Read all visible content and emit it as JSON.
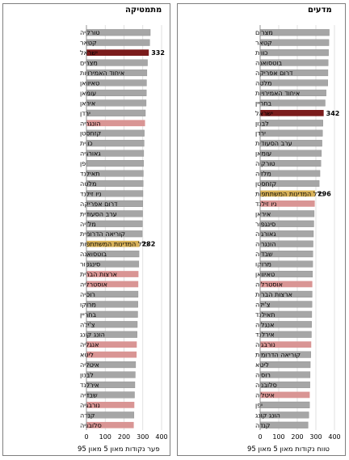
{
  "chart_data": [
    {
      "type": "bar",
      "orientation": "horizontal",
      "title": "מתמטיקה",
      "xlabel": "פער נקודות מאון 5 מאון 95",
      "xlim": [
        0,
        400
      ],
      "xticks": [
        0,
        100,
        200,
        300,
        400
      ],
      "highlight_colors": {
        "default": "#a6a6a6",
        "israel": "#7b1c1c",
        "average": "#d9b35a",
        "pink": "#d99594"
      },
      "categories": [
        "טורקיה",
        "קטאר",
        "ישראל",
        "מצרים",
        "איחוד האמירויות",
        "טאיוואן",
        "עומאן",
        "איראן",
        "ירדן",
        "הונגריה",
        "קזחסטן",
        "כווית",
        "גאורגיה",
        "יפן",
        "תאילנד",
        "מלטה",
        "ניו זילנד",
        "דרום אפריקה",
        "ערב הסעודית",
        "מלזיה",
        "קוריאה הדרומית",
        "כלל המדינות המשתתפות",
        "בוטסואנה",
        "סינגפור",
        "ארצות הברית",
        "אוסטרליה",
        "רוסיה",
        "מרוקו",
        "בחריין",
        "צ'ילה",
        "הונג קונג",
        "אנגליה",
        "ליטא",
        "איטליה",
        "לבנון",
        "אירלנד",
        "שבדיה",
        "נורבגיה",
        "קנדה",
        "סלובניה"
      ],
      "values": [
        340,
        337,
        332,
        325,
        322,
        320,
        319,
        318,
        314,
        312,
        308,
        307,
        305,
        304,
        303,
        302,
        301,
        300,
        299,
        298,
        297,
        282,
        280,
        279,
        277,
        276,
        275,
        274,
        273,
        271,
        270,
        268,
        267,
        262,
        260,
        258,
        256,
        255,
        253,
        252
      ],
      "bar_kinds": [
        "default",
        "default",
        "israel",
        "default",
        "default",
        "default",
        "default",
        "default",
        "default",
        "pink",
        "default",
        "default",
        "default",
        "default",
        "default",
        "default",
        "default",
        "default",
        "default",
        "default",
        "default",
        "average",
        "default",
        "default",
        "pink",
        "pink",
        "default",
        "default",
        "default",
        "default",
        "default",
        "pink",
        "pink",
        "default",
        "default",
        "default",
        "default",
        "pink",
        "default",
        "pink"
      ],
      "data_labels": {
        "ישראל": "332",
        "כלל המדינות המשתתפות": "282"
      }
    },
    {
      "type": "bar",
      "orientation": "horizontal",
      "title": "מדעים",
      "xlabel": "טווח נקודות מאון 5 מאון 95",
      "xlim": [
        0,
        400
      ],
      "xticks": [
        0,
        100,
        200,
        300,
        400
      ],
      "categories": [
        "מצרים",
        "קטאר",
        "כווית",
        "בוטסואנה",
        "דרום אפריקה",
        "מלטה",
        "איחוד האמירויות",
        "בחריין",
        "ישראל",
        "לבנון",
        "ירדן",
        "ערב הסעודית",
        "עומאן",
        "טורקיה",
        "מלזיה",
        "קזחסטן",
        "כלל המדינות המשתתפות",
        "ניו זילנד",
        "איראן",
        "סינגפור",
        "גאורגיה",
        "הונגריה",
        "שבדיה",
        "מרוקו",
        "טאיוואן",
        "אוסטרליה",
        "ארצות הברית",
        "צ'ילה",
        "תאילנד",
        "אנגליה",
        "אירלנד",
        "נורבגיה",
        "קוריאה הדרומית",
        "ליטא",
        "רוסיה",
        "סלובניה",
        "איטליה",
        "יפן",
        "הונג קונג",
        "קנדה"
      ],
      "values": [
        372,
        370,
        368,
        366,
        365,
        364,
        355,
        350,
        342,
        338,
        336,
        333,
        330,
        327,
        322,
        318,
        296,
        294,
        291,
        289,
        287,
        285,
        284,
        283,
        282,
        281,
        280,
        279,
        278,
        277,
        276,
        275,
        273,
        270,
        269,
        268,
        267,
        266,
        262,
        258
      ],
      "bar_kinds": [
        "default",
        "default",
        "default",
        "default",
        "default",
        "default",
        "default",
        "default",
        "israel",
        "default",
        "default",
        "default",
        "default",
        "default",
        "default",
        "default",
        "average",
        "pink",
        "default",
        "default",
        "default",
        "default",
        "default",
        "default",
        "default",
        "pink",
        "default",
        "default",
        "default",
        "default",
        "default",
        "pink",
        "default",
        "default",
        "default",
        "default",
        "pink",
        "default",
        "default",
        "default"
      ],
      "data_labels": {
        "ישראל": "342",
        "כלל המדינות המשתתפות": "296"
      }
    }
  ]
}
